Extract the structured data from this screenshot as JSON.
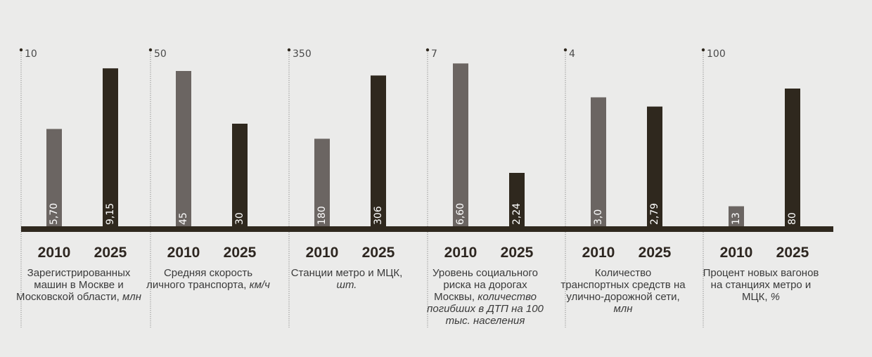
{
  "colors": {
    "bar_2010": "#6b6562",
    "bar_2025": "#2f281e",
    "baseline": "#2f281e",
    "divider": "#8c8c8c",
    "background": "#ebebea"
  },
  "chart_data": [
    {
      "type": "bar",
      "categories": [
        "2010",
        "2025"
      ],
      "values": [
        5.7,
        9.15
      ],
      "value_labels": [
        "5,70",
        "9,15"
      ],
      "ylim": [
        0,
        10
      ],
      "max_label": "10",
      "caption": "Зарегистрированных машин в Москве и Московской области,",
      "unit": "млн"
    },
    {
      "type": "bar",
      "categories": [
        "2010",
        "2025"
      ],
      "values": [
        45,
        30
      ],
      "value_labels": [
        "45",
        "30"
      ],
      "ylim": [
        0,
        50
      ],
      "max_label": "50",
      "caption": "Средняя скорость личного транспорта,",
      "unit": "км/ч"
    },
    {
      "type": "bar",
      "categories": [
        "2010",
        "2025"
      ],
      "values": [
        180,
        306
      ],
      "value_labels": [
        "180",
        "306"
      ],
      "ylim": [
        0,
        350
      ],
      "max_label": "350",
      "caption": "Станции метро и МЦК,",
      "unit": "шт."
    },
    {
      "type": "bar",
      "categories": [
        "2010",
        "2025"
      ],
      "values": [
        6.6,
        2.24
      ],
      "value_labels": [
        "6,60",
        "2,24"
      ],
      "ylim": [
        0,
        7
      ],
      "max_label": "7",
      "caption": "Уровень социального риска на дорогах Москвы,",
      "unit": "количество погибших в ДТП на 100 тыс. населения"
    },
    {
      "type": "bar",
      "categories": [
        "2010",
        "2025"
      ],
      "values": [
        3.0,
        2.79
      ],
      "value_labels": [
        "3,0",
        "2,79"
      ],
      "ylim": [
        0,
        4
      ],
      "max_label": "4",
      "caption": "Количество транспортных средств на улично-дорожной сети,",
      "unit": "млн"
    },
    {
      "type": "bar",
      "categories": [
        "2010",
        "2025"
      ],
      "values": [
        13,
        80
      ],
      "value_labels": [
        "13",
        "80"
      ],
      "ylim": [
        0,
        100
      ],
      "max_label": "100",
      "caption": "Процент новых вагонов на станциях метро и МЦК,",
      "unit": "%"
    }
  ]
}
